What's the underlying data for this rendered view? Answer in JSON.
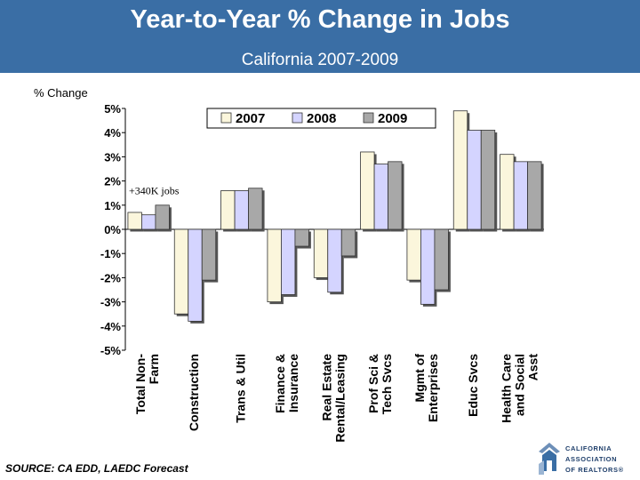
{
  "header": {
    "title": "Year-to-Year % Change in Jobs",
    "subtitle": "California 2007-2009",
    "bg_color": "#3a6ea5"
  },
  "chart_data": {
    "type": "bar",
    "title": "Year-to-Year % Change in Jobs",
    "subtitle": "California 2007-2009",
    "ylabel": "% Change",
    "xlabel": "",
    "ylim": [
      -5,
      5
    ],
    "yticks": [
      5,
      4,
      3,
      2,
      1,
      0,
      -1,
      -2,
      -3,
      -4,
      -5
    ],
    "ytick_labels": [
      "5%",
      "4%",
      "3%",
      "2%",
      "1%",
      "0%",
      "-1%",
      "-2%",
      "-3%",
      "-4%",
      "-5%"
    ],
    "grid": false,
    "legend_position": "top-right",
    "categories": [
      [
        "Total Non-",
        "Farm"
      ],
      [
        "Construction"
      ],
      [
        "Trans & Util"
      ],
      [
        "Finance &",
        "Insurance"
      ],
      [
        "Real Estate",
        "Rental/Leasing"
      ],
      [
        "Prof Sci &",
        "Tech Svcs"
      ],
      [
        "Mgmt of",
        "Enterprises"
      ],
      [
        "Educ Svcs"
      ],
      [
        "Health Care",
        "and Social",
        "Asst"
      ]
    ],
    "series": [
      {
        "name": "2007",
        "color": "#fbf6dc",
        "values": [
          0.7,
          -3.5,
          1.6,
          -3.0,
          -2.0,
          3.2,
          -2.1,
          4.9,
          3.1
        ]
      },
      {
        "name": "2008",
        "color": "#d4d4ff",
        "values": [
          0.6,
          -3.8,
          1.6,
          -2.7,
          -2.6,
          2.7,
          -3.1,
          4.1,
          2.8
        ]
      },
      {
        "name": "2009",
        "color": "#a8a8a8",
        "values": [
          1.0,
          -2.1,
          1.7,
          -0.7,
          -1.1,
          2.8,
          -2.5,
          4.1,
          2.8
        ]
      }
    ],
    "annotations": [
      {
        "text": "+340K jobs",
        "category_index": 0
      }
    ]
  },
  "footer": {
    "source": "SOURCE: CA EDD, LAEDC Forecast",
    "logo_lines": [
      "CALIFORNIA",
      "ASSOCIATION",
      "OF REALTORS®"
    ]
  }
}
